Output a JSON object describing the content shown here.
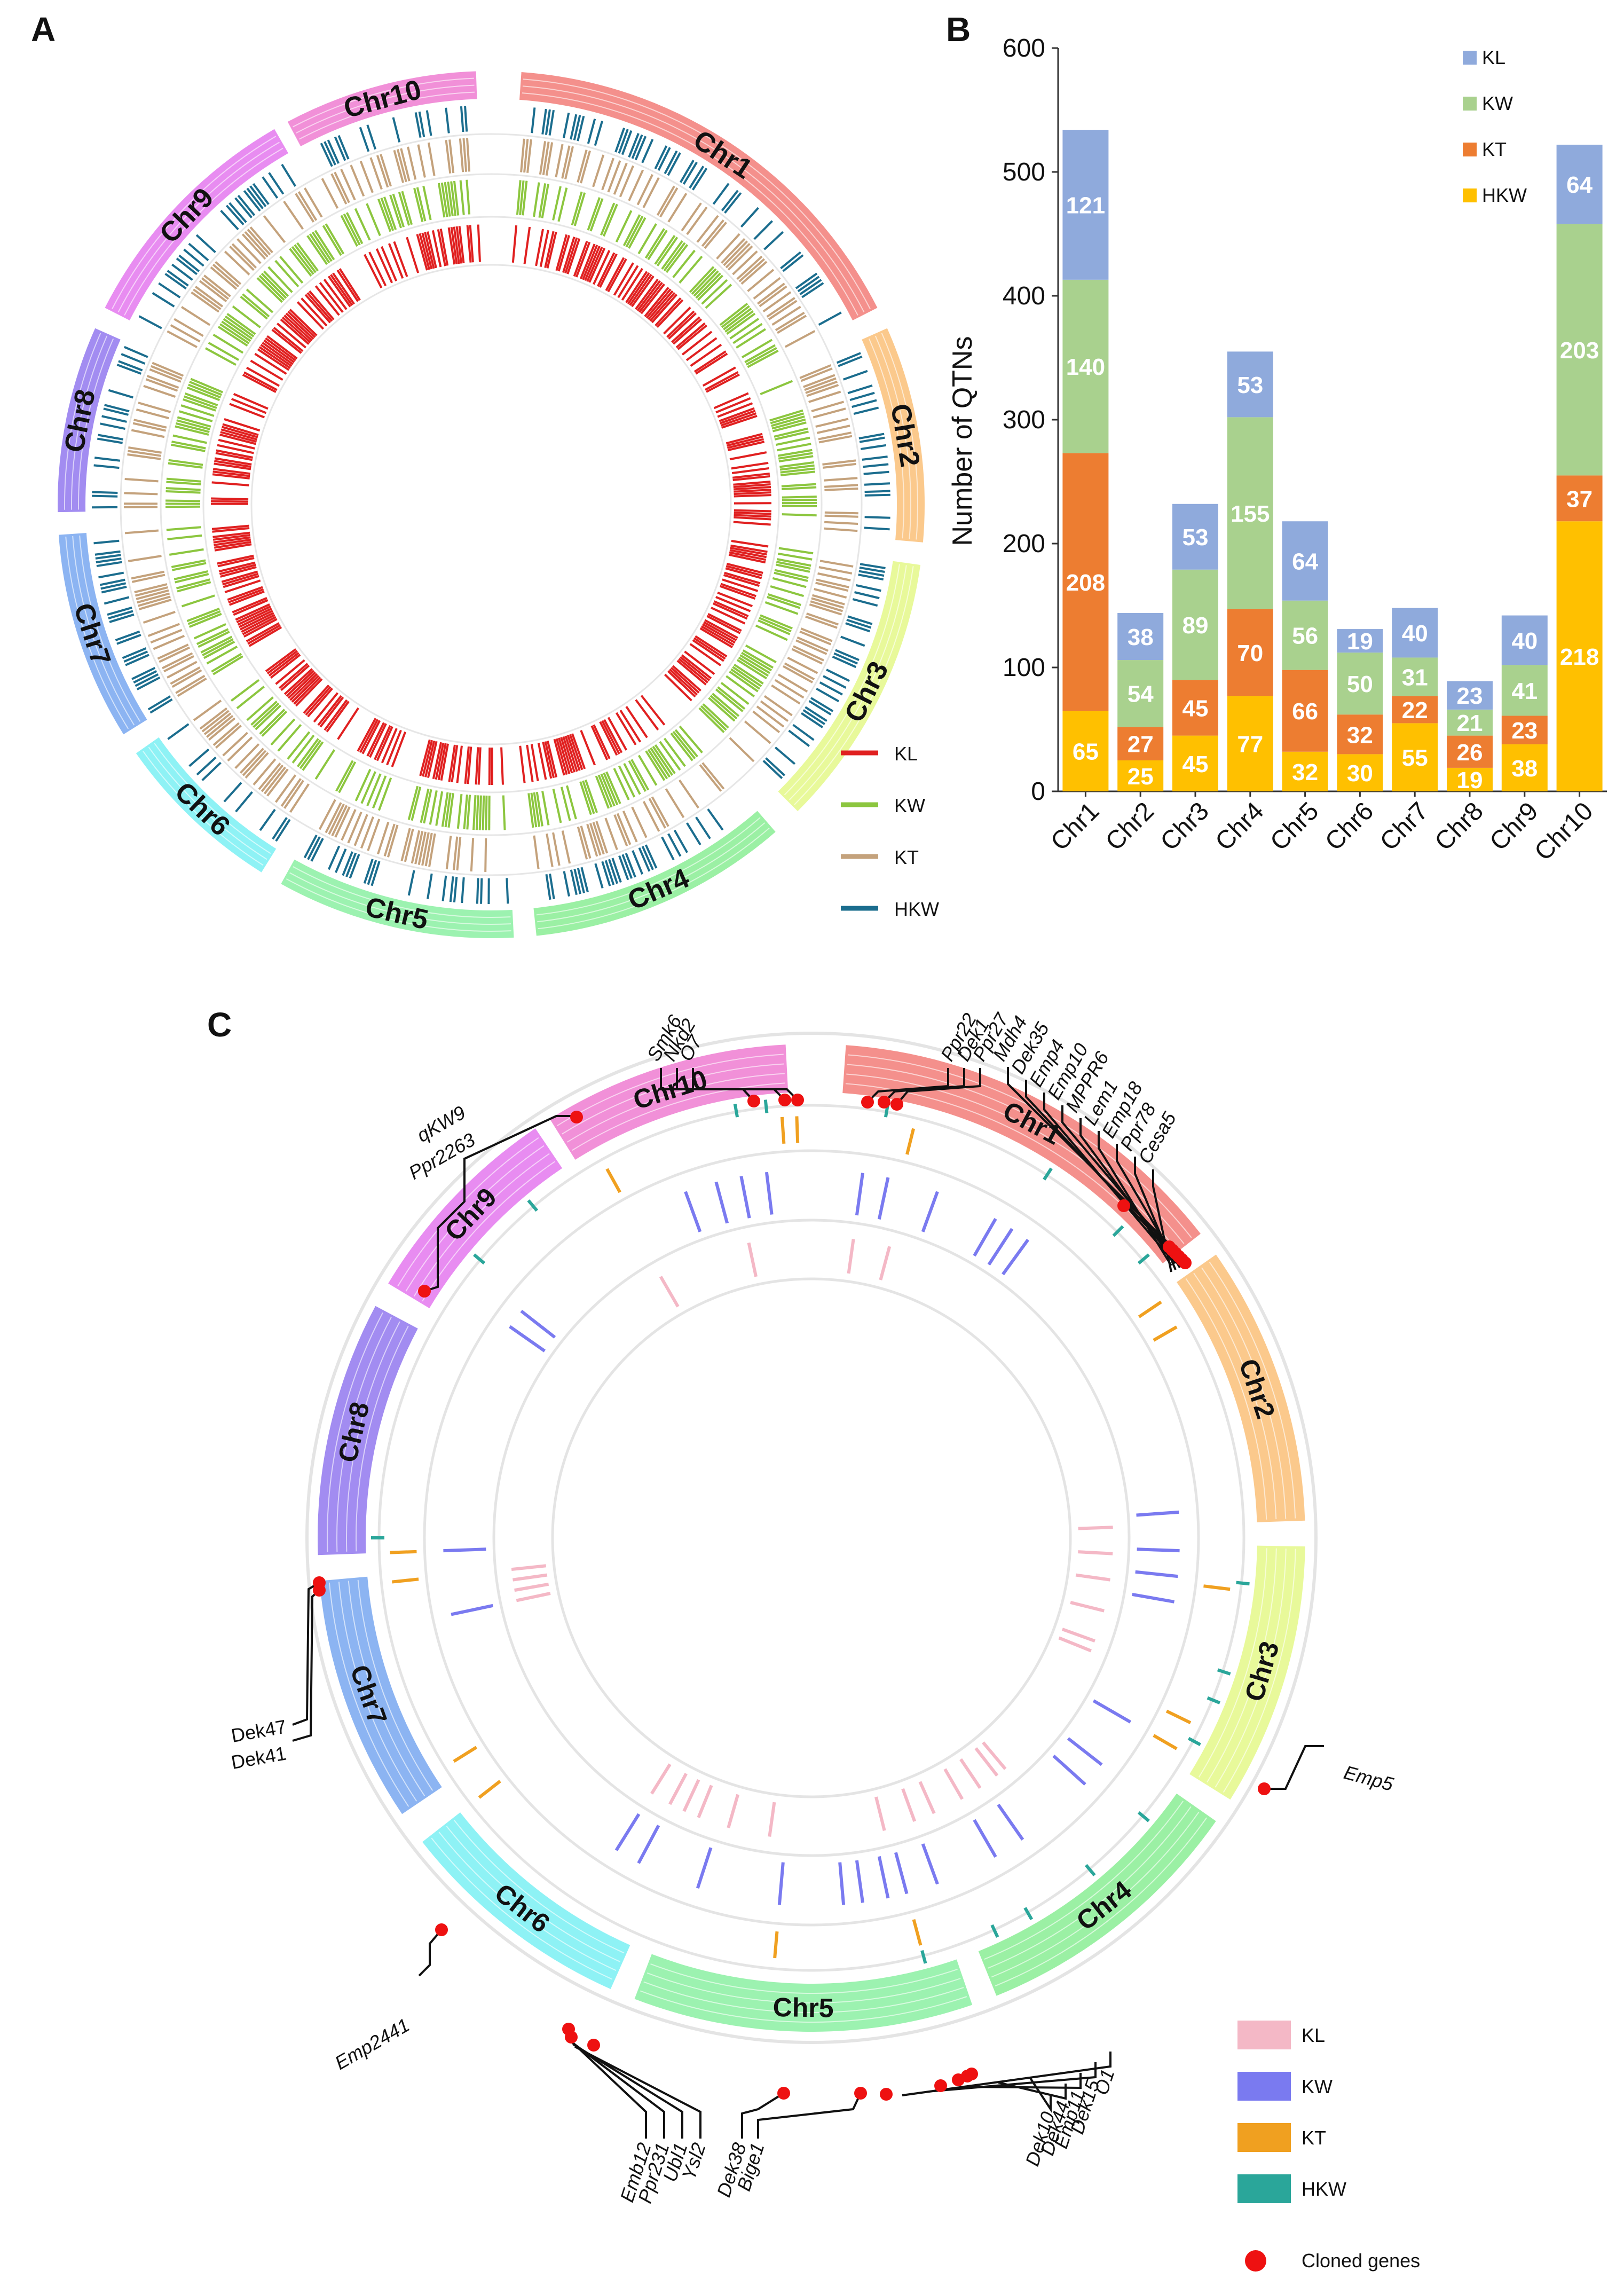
{
  "panels": {
    "a": "A",
    "b": "B",
    "c": "C"
  },
  "chr_labels": [
    "Chr1",
    "Chr2",
    "Chr3",
    "Chr4",
    "Chr5",
    "Chr6",
    "Chr7",
    "Chr8",
    "Chr9",
    "Chr10"
  ],
  "chr_colors": [
    "#f4908c",
    "#fbc98c",
    "#e8f99a",
    "#9bf0a4",
    "#9cf2b0",
    "#8ef2f5",
    "#8cb4f2",
    "#a28cf1",
    "#e88cf1",
    "#f190d8"
  ],
  "trait_colors_a": {
    "KL": "#e02020",
    "KW": "#8cc63f",
    "KT": "#c4a27c",
    "HKW": "#1b6d8e"
  },
  "trait_colors_c": {
    "KL": "#f4b8c6",
    "KW": "#7a7af0",
    "KT": "#f0a020",
    "HKW": "#2aa69a",
    "Cloned genes": "#ee1111"
  },
  "legend_a": [
    "KL",
    "KW",
    "KT",
    "HKW"
  ],
  "legend_c": [
    "KL",
    "KW",
    "KT",
    "HKW",
    "Cloned genes"
  ],
  "chart_data": [
    {
      "type": "circos",
      "panel": "A",
      "title": "",
      "tracks_inner_to_outer": [
        "KL",
        "KW",
        "KT",
        "HKW"
      ],
      "legend": [
        "KL",
        "KW",
        "KT",
        "HKW"
      ]
    },
    {
      "type": "bar",
      "stacked": true,
      "panel": "B",
      "categories": [
        "Chr1",
        "Chr2",
        "Chr3",
        "Chr4",
        "Chr5",
        "Chr6",
        "Chr7",
        "Chr8",
        "Chr9",
        "Chr10"
      ],
      "series": [
        {
          "name": "HKW",
          "color": "#ffc000",
          "values": [
            65,
            25,
            45,
            77,
            32,
            30,
            55,
            19,
            38,
            218
          ]
        },
        {
          "name": "KT",
          "color": "#ed7d31",
          "values": [
            208,
            27,
            45,
            70,
            66,
            32,
            22,
            26,
            23,
            37
          ]
        },
        {
          "name": "KW",
          "color": "#a9d18e",
          "values": [
            140,
            54,
            89,
            155,
            56,
            50,
            31,
            21,
            41,
            203
          ]
        },
        {
          "name": "KL",
          "color": "#8faadc",
          "values": [
            121,
            38,
            53,
            53,
            64,
            19,
            40,
            23,
            40,
            64
          ]
        }
      ],
      "legend_order": [
        "KL",
        "KW",
        "KT",
        "HKW"
      ],
      "ylabel": "Number of QTNs",
      "xlabel": "",
      "ylim": [
        0,
        600
      ],
      "yticks": [
        0,
        100,
        200,
        300,
        400,
        500,
        600
      ]
    },
    {
      "type": "circos",
      "panel": "C",
      "tracks_inner_to_outer": [
        "KL",
        "KW",
        "KT",
        "HKW"
      ],
      "legend": [
        "KL",
        "KW",
        "KT",
        "HKW",
        "Cloned genes"
      ],
      "gene_groups": [
        {
          "genes": [
            "Smk6",
            "Nkd2",
            "O7"
          ]
        },
        {
          "genes": [
            "Ppr22",
            "Dek1",
            "Ppr27"
          ]
        },
        {
          "genes": [
            "Mdh4",
            "Dek35",
            "Emp4",
            "Emp10",
            "MPPR6",
            "Lem1",
            "Emp18",
            "Ppr78",
            "Cesa5"
          ]
        },
        {
          "genes": [
            "qKW9",
            "Ppr2263"
          ]
        },
        {
          "genes": [
            "Dek47",
            "Dek41"
          ]
        },
        {
          "genes": [
            "Emp5"
          ]
        },
        {
          "genes": [
            "Emp2441"
          ]
        },
        {
          "genes": [
            "Emb12",
            "Ppr231",
            "Ubl1",
            "Ysl2"
          ]
        },
        {
          "genes": [
            "Dek38",
            "Bige1"
          ]
        },
        {
          "genes": [
            "O1",
            "Dek15",
            "Emp11",
            "Dek44",
            "Dek10"
          ]
        }
      ]
    }
  ]
}
